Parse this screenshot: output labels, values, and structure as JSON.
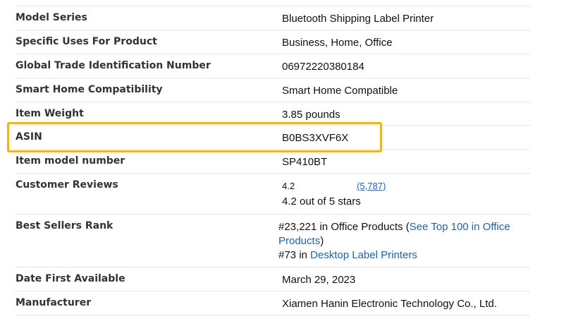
{
  "rows": [
    {
      "label": "Model Series",
      "value": "Bluetooth Shipping Label Printer"
    },
    {
      "label": "Specific Uses For Product",
      "value": "Business, Home, Office"
    },
    {
      "label": "Global Trade Identification Number",
      "value": "06972220380184"
    },
    {
      "label": "Smart Home Compatibility",
      "value": "Smart Home Compatible"
    },
    {
      "label": "Item Weight",
      "value": "3.85 pounds"
    },
    {
      "label": "ASIN",
      "value": "B0BS3XVF6X"
    },
    {
      "label": "Item model number",
      "value": "SP410BT"
    }
  ],
  "reviews": {
    "label": "Customer Reviews",
    "rating": "4.2",
    "count": "(5,787)",
    "stars_text": "4.2 out of 5 stars"
  },
  "best_sellers": {
    "label": "Best Sellers Rank",
    "rank1": "#23,221 in Office Products (",
    "link1": "See Top 100 in Office Products",
    "close": ")",
    "rank2": "#73 in ",
    "link2": "Desktop Label Printers"
  },
  "rows2": [
    {
      "label": "Date First Available",
      "value": "March 29, 2023"
    },
    {
      "label": "Manufacturer",
      "value": "Xiamen Hanin Electronic Technology Co., Ltd."
    }
  ],
  "highlight_color": "#f7b500"
}
